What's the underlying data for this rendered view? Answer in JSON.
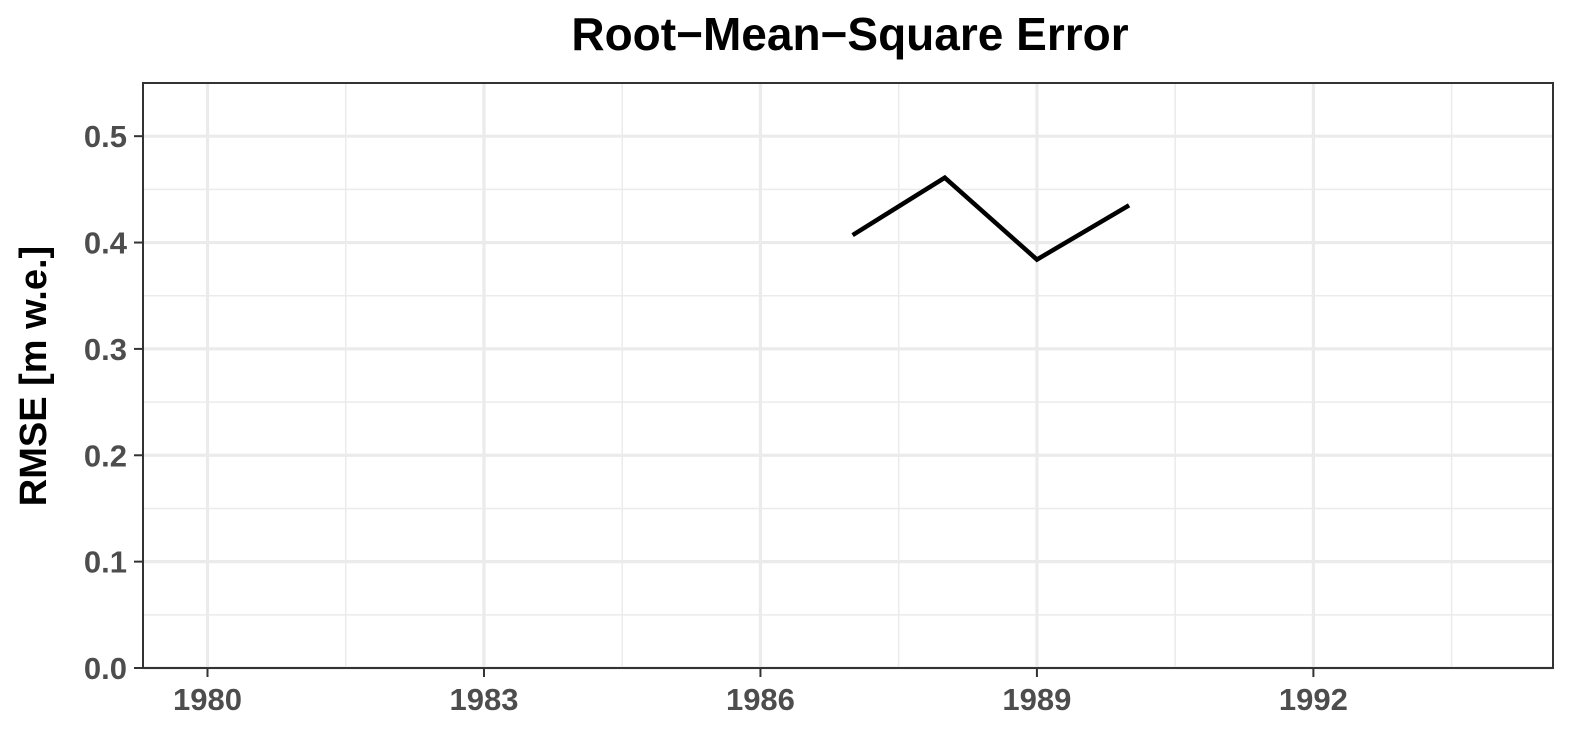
{
  "chart_data": {
    "type": "line",
    "title": "Root−Mean−Square Error",
    "xlabel": "",
    "ylabel": "RMSE [m w.e.]",
    "xlim": [
      1979.3,
      1994.6
    ],
    "ylim": [
      0,
      0.55
    ],
    "x_ticks": [
      1980,
      1983,
      1986,
      1989,
      1992
    ],
    "x_tick_labels": [
      "1980",
      "1983",
      "1986",
      "1989",
      "1992"
    ],
    "y_ticks": [
      0,
      0.1,
      0.2,
      0.3,
      0.4,
      0.5
    ],
    "y_tick_labels": [
      "0.0",
      "0.1",
      "0.2",
      "0.3",
      "0.4",
      "0.5"
    ],
    "grid": true,
    "series": [
      {
        "x": [
          1987,
          1988,
          1989,
          1990
        ],
        "values": [
          0.407,
          0.461,
          0.384,
          0.435
        ]
      }
    ],
    "colors": {
      "line": "#000000",
      "grid": "#ebebeb",
      "border": "#333333",
      "tick_text": "#4d4d4d"
    }
  }
}
